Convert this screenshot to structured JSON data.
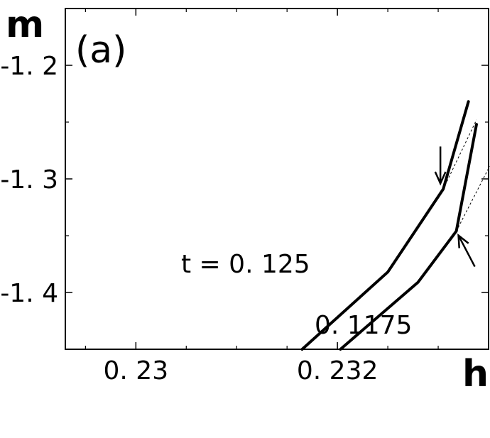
{
  "chart_data": {
    "type": "line",
    "panel_label": "(a)",
    "xlabel": "h",
    "ylabel": "m",
    "xlim": [
      0.2293,
      0.2335
    ],
    "ylim": [
      -1.45,
      -1.15
    ],
    "xticks": [
      0.23,
      0.232
    ],
    "xtick_labels": [
      "0. 23",
      "0. 232"
    ],
    "yticks": [
      -1.2,
      -1.3,
      -1.4
    ],
    "ytick_labels": [
      "-1. 2",
      "-1. 3",
      "-1. 4"
    ],
    "grid": false,
    "series": [
      {
        "name": "t = 0. 125",
        "x": [
          0.23165,
          0.2325,
          0.23305,
          0.2333
        ],
        "y": [
          -1.45,
          -1.382,
          -1.309,
          -1.232
        ]
      },
      {
        "name": "0. 1175",
        "x": [
          0.23203,
          0.2328,
          0.23318,
          0.23338
        ],
        "y": [
          -1.45,
          -1.391,
          -1.346,
          -1.252
        ]
      }
    ],
    "extrapolations": [
      {
        "x": [
          0.23305,
          0.23338
        ],
        "y": [
          -1.309,
          -1.248
        ]
      },
      {
        "x": [
          0.23318,
          0.23351
        ],
        "y": [
          -1.346,
          -1.289
        ]
      }
    ],
    "annotations": [
      {
        "type": "arrow",
        "target_series": 0,
        "direction": "down"
      },
      {
        "type": "arrow",
        "target_series": 1,
        "direction": "up-left"
      }
    ]
  }
}
